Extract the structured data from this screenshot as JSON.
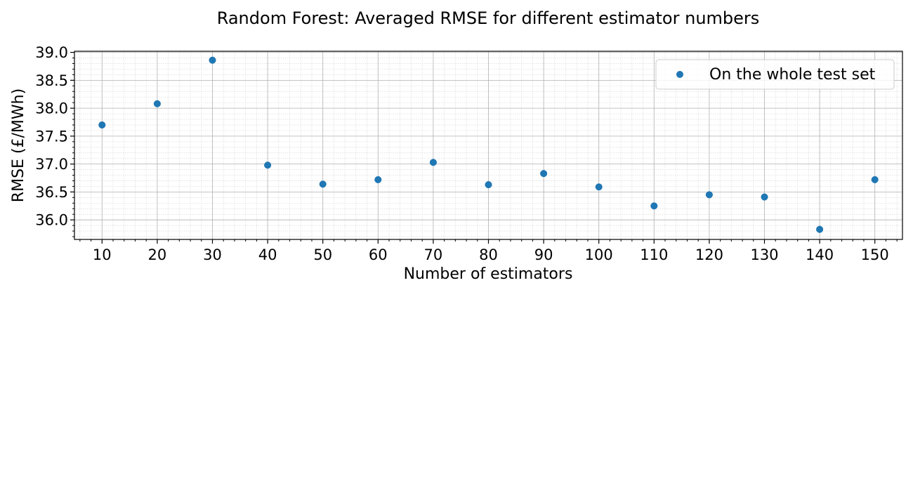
{
  "chart_data": {
    "type": "scatter",
    "title": "Random Forest: Averaged RMSE for different estimator numbers",
    "xlabel": "Number of estimators",
    "ylabel": "RMSE (£/MWh)",
    "xlim": [
      5,
      155
    ],
    "ylim": [
      35.65,
      39.02
    ],
    "xticks": [
      10,
      20,
      30,
      40,
      50,
      60,
      70,
      80,
      90,
      100,
      110,
      120,
      130,
      140,
      150
    ],
    "yticks": [
      36.0,
      36.5,
      37.0,
      37.5,
      38.0,
      38.5,
      39.0
    ],
    "ytick_labels": [
      "36.0",
      "36.5",
      "37.0",
      "37.5",
      "38.0",
      "38.5",
      "39.0"
    ],
    "x_minor_step": 2,
    "y_minor_step": 0.1,
    "grid": true,
    "legend_position": "top-right",
    "series": [
      {
        "name": "On the whole test set",
        "color": "#1f77b4",
        "x": [
          10,
          20,
          30,
          40,
          50,
          60,
          70,
          80,
          90,
          100,
          110,
          120,
          130,
          140,
          150
        ],
        "y": [
          37.7,
          38.08,
          38.86,
          36.98,
          36.64,
          36.72,
          37.03,
          36.63,
          36.83,
          36.59,
          36.25,
          36.45,
          36.41,
          35.83,
          36.72
        ]
      }
    ]
  }
}
